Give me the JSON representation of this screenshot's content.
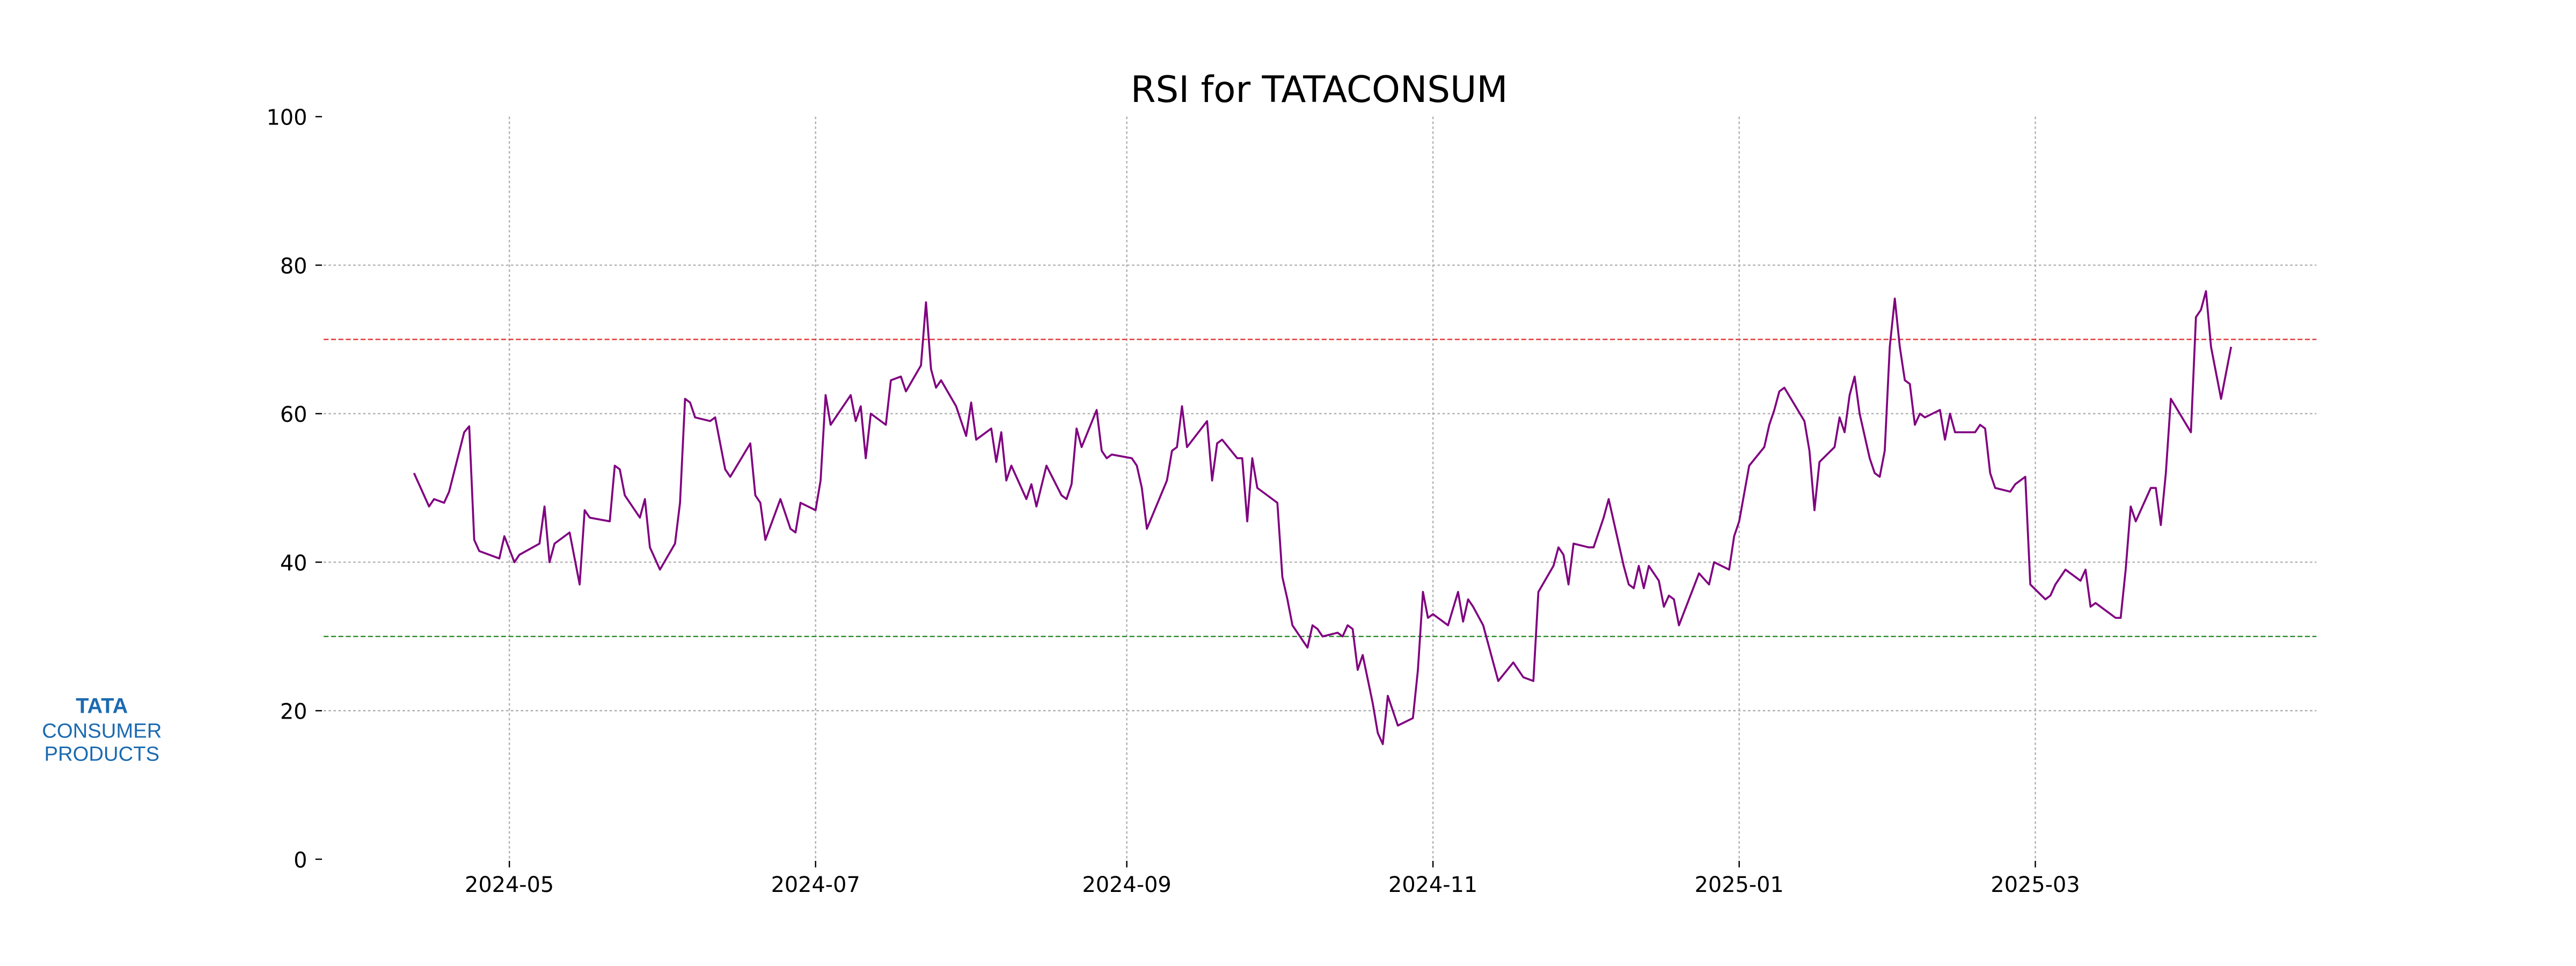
{
  "chart_data": {
    "type": "line",
    "title": "RSI for TATACONSUM",
    "x": [
      "2024-04-12",
      "2024-04-15",
      "2024-04-16",
      "2024-04-18",
      "2024-04-19",
      "2024-04-22",
      "2024-04-23",
      "2024-04-24",
      "2024-04-25",
      "2024-04-29",
      "2024-04-30",
      "2024-05-02",
      "2024-05-03",
      "2024-05-07",
      "2024-05-08",
      "2024-05-09",
      "2024-05-10",
      "2024-05-13",
      "2024-05-15",
      "2024-05-16",
      "2024-05-17",
      "2024-05-21",
      "2024-05-22",
      "2024-05-23",
      "2024-05-24",
      "2024-05-27",
      "2024-05-28",
      "2024-05-29",
      "2024-05-31",
      "2024-06-03",
      "2024-06-04",
      "2024-06-05",
      "2024-06-06",
      "2024-06-07",
      "2024-06-10",
      "2024-06-11",
      "2024-06-13",
      "2024-06-14",
      "2024-06-18",
      "2024-06-19",
      "2024-06-20",
      "2024-06-21",
      "2024-06-24",
      "2024-06-26",
      "2024-06-27",
      "2024-06-28",
      "2024-07-01",
      "2024-07-02",
      "2024-07-03",
      "2024-07-04",
      "2024-07-05",
      "2024-07-08",
      "2024-07-09",
      "2024-07-10",
      "2024-07-11",
      "2024-07-12",
      "2024-07-15",
      "2024-07-16",
      "2024-07-18",
      "2024-07-19",
      "2024-07-22",
      "2024-07-23",
      "2024-07-24",
      "2024-07-25",
      "2024-07-26",
      "2024-07-29",
      "2024-07-31",
      "2024-08-01",
      "2024-08-02",
      "2024-08-05",
      "2024-08-06",
      "2024-08-07",
      "2024-08-08",
      "2024-08-09",
      "2024-08-12",
      "2024-08-13",
      "2024-08-14",
      "2024-08-16",
      "2024-08-19",
      "2024-08-20",
      "2024-08-21",
      "2024-08-22",
      "2024-08-23",
      "2024-08-26",
      "2024-08-27",
      "2024-08-28",
      "2024-08-29",
      "2024-09-02",
      "2024-09-03",
      "2024-09-04",
      "2024-09-05",
      "2024-09-09",
      "2024-09-10",
      "2024-09-11",
      "2024-09-12",
      "2024-09-13",
      "2024-09-17",
      "2024-09-18",
      "2024-09-19",
      "2024-09-20",
      "2024-09-23",
      "2024-09-24",
      "2024-09-25",
      "2024-09-26",
      "2024-09-27",
      "2024-09-30",
      "2024-10-01",
      "2024-10-02",
      "2024-10-03",
      "2024-10-04",
      "2024-10-07",
      "2024-10-08",
      "2024-10-09",
      "2024-10-10",
      "2024-10-13",
      "2024-10-14",
      "2024-10-15",
      "2024-10-16",
      "2024-10-17",
      "2024-10-18",
      "2024-10-20",
      "2024-10-21",
      "2024-10-22",
      "2024-10-23",
      "2024-10-25",
      "2024-10-28",
      "2024-10-29",
      "2024-10-30",
      "2024-10-31",
      "2024-11-01",
      "2024-11-04",
      "2024-11-06",
      "2024-11-07",
      "2024-11-08",
      "2024-11-09",
      "2024-11-11",
      "2024-11-12",
      "2024-11-14",
      "2024-11-17",
      "2024-11-19",
      "2024-11-21",
      "2024-11-22",
      "2024-11-25",
      "2024-11-26",
      "2024-11-27",
      "2024-11-28",
      "2024-11-29",
      "2024-12-02",
      "2024-12-03",
      "2024-12-05",
      "2024-12-06",
      "2024-12-09",
      "2024-12-10",
      "2024-12-11",
      "2024-12-12",
      "2024-12-13",
      "2024-12-14",
      "2024-12-16",
      "2024-12-17",
      "2024-12-18",
      "2024-12-19",
      "2024-12-20",
      "2024-12-24",
      "2024-12-26",
      "2024-12-27",
      "2024-12-30",
      "2024-12-31",
      "2025-01-01",
      "2025-01-03",
      "2025-01-06",
      "2025-01-07",
      "2025-01-08",
      "2025-01-09",
      "2025-01-10",
      "2025-01-14",
      "2025-01-15",
      "2025-01-16",
      "2025-01-17",
      "2025-01-20",
      "2025-01-21",
      "2025-01-22",
      "2025-01-23",
      "2025-01-24",
      "2025-01-25",
      "2025-01-27",
      "2025-01-28",
      "2025-01-29",
      "2025-01-30",
      "2025-01-31",
      "2025-02-01",
      "2025-02-02",
      "2025-02-03",
      "2025-02-04",
      "2025-02-05",
      "2025-02-06",
      "2025-02-07",
      "2025-02-10",
      "2025-02-11",
      "2025-02-12",
      "2025-02-13",
      "2025-02-17",
      "2025-02-18",
      "2025-02-19",
      "2025-02-20",
      "2025-02-21",
      "2025-02-24",
      "2025-02-25",
      "2025-02-27",
      "2025-02-28",
      "2025-03-03",
      "2025-03-04",
      "2025-03-05",
      "2025-03-07",
      "2025-03-10",
      "2025-03-11",
      "2025-03-12",
      "2025-03-13",
      "2025-03-17",
      "2025-03-18",
      "2025-03-19",
      "2025-03-20",
      "2025-03-21",
      "2025-03-24",
      "2025-03-25",
      "2025-03-26",
      "2025-03-27",
      "2025-03-28",
      "2025-04-01",
      "2025-04-02",
      "2025-04-03",
      "2025-04-04",
      "2025-04-05",
      "2025-04-07",
      "2025-04-09"
    ],
    "series": [
      {
        "name": "RSI",
        "color": "#800080",
        "values": [
          52,
          47.5,
          48.5,
          48,
          49.5,
          57.5,
          58.3,
          43,
          41.5,
          40.5,
          43.5,
          40,
          41,
          42.5,
          47.5,
          40,
          42.5,
          44,
          37,
          47,
          46,
          45.5,
          53,
          52.5,
          49,
          46,
          48.5,
          42,
          39,
          42.5,
          48,
          62,
          61.5,
          59.5,
          59,
          59.5,
          52.5,
          51.5,
          56,
          49,
          48,
          43,
          48.5,
          44.5,
          44,
          48,
          47,
          51,
          62.5,
          58.5,
          59.5,
          62.5,
          59,
          61,
          54,
          60,
          58.5,
          64.5,
          65,
          63,
          66.5,
          75,
          66,
          63.5,
          64.5,
          61,
          57,
          61.5,
          56.5,
          58,
          53.5,
          57.5,
          51,
          53,
          48.5,
          50.5,
          47.5,
          53,
          49,
          48.5,
          50.5,
          58,
          55.5,
          60.5,
          55,
          54,
          54.5,
          54,
          53,
          50,
          44.5,
          51,
          55,
          55.5,
          61,
          55.5,
          59,
          51,
          56,
          56.5,
          54,
          54,
          45.5,
          54,
          50,
          48.5,
          48,
          38,
          35,
          31.5,
          28.5,
          31.5,
          31,
          30,
          30.5,
          30,
          31.5,
          31,
          25.5,
          27.5,
          21,
          17,
          15.5,
          22,
          18,
          19,
          25.5,
          36,
          32.5,
          33,
          31.5,
          36,
          32,
          35,
          34,
          31.5,
          29,
          24,
          26.5,
          24.5,
          24,
          36,
          39.5,
          42,
          41,
          37,
          42.5,
          42,
          42,
          46,
          48.5,
          39.5,
          37,
          36.5,
          39.5,
          36.5,
          39.5,
          37.5,
          34,
          35.5,
          35,
          31.5,
          38.5,
          37,
          40,
          39,
          43.5,
          45.5,
          53,
          55.5,
          58.5,
          60.5,
          63,
          63.5,
          59,
          55,
          47,
          53.5,
          55.5,
          59.5,
          57.5,
          62.5,
          65,
          60,
          54,
          52,
          51.5,
          55,
          69,
          75.5,
          69,
          64.5,
          64,
          58.5,
          60,
          59.5,
          60.5,
          56.5,
          60,
          57.5,
          57.5,
          58.5,
          58,
          52,
          50,
          49.5,
          50.5,
          51.5,
          37,
          35,
          35.5,
          37,
          39,
          37.5,
          39,
          34,
          34.5,
          32.5,
          32.5,
          39,
          47.5,
          45.5,
          50,
          50,
          45,
          52,
          62,
          57.5,
          73,
          74,
          76.5,
          69,
          62,
          69
        ]
      }
    ],
    "xlim": [
      "2024-03-25",
      "2025-04-26"
    ],
    "xticks": [
      "2024-05",
      "2024-07",
      "2024-09",
      "2024-11",
      "2025-01",
      "2025-03"
    ],
    "ylim": [
      0,
      100
    ],
    "yticks": [
      0,
      20,
      40,
      60,
      80,
      100
    ],
    "grid": true,
    "hlines": [
      {
        "value": 70,
        "color": "#e03030"
      },
      {
        "value": 30,
        "color": "#2a8a2a"
      }
    ]
  },
  "logo": {
    "lines": [
      "TATA",
      "CONSUMER",
      "PRODUCTS"
    ]
  }
}
